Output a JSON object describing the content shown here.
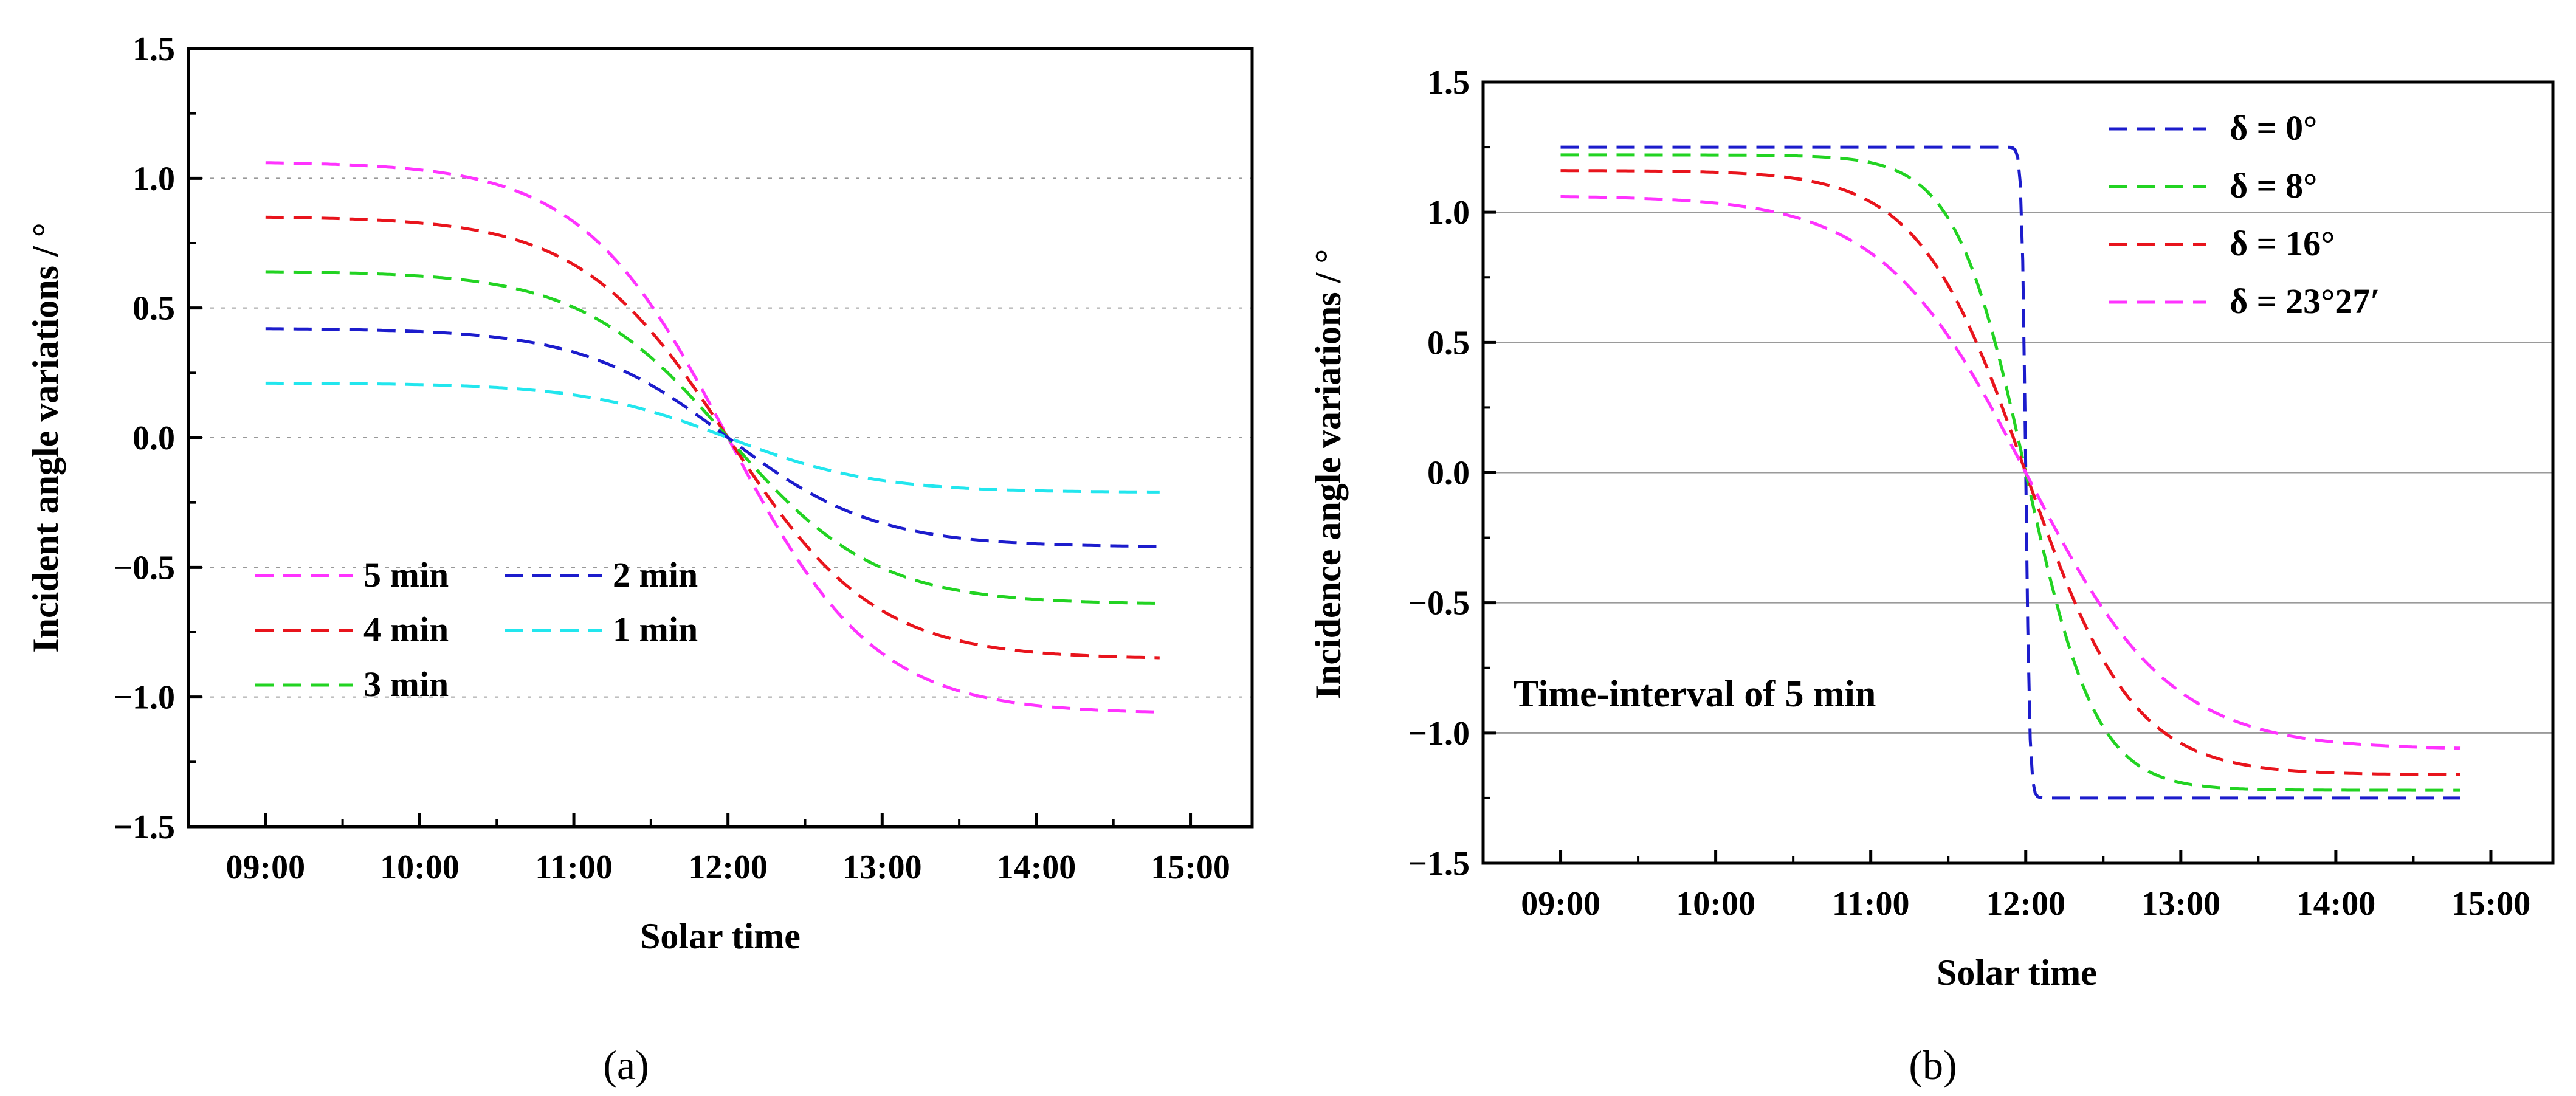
{
  "chart_data": [
    {
      "type": "line",
      "panel_label": "(a)",
      "xlabel": "Solar time",
      "ylabel": "Incident angle variations / °",
      "xlim": [
        8.5,
        15.4
      ],
      "ylim": [
        -1.5,
        1.5
      ],
      "x_ticks": [
        "09:00",
        "10:00",
        "11:00",
        "12:00",
        "13:00",
        "14:00",
        "15:00"
      ],
      "y_ticks": [
        "-1.5",
        "-1.0",
        "-0.5",
        "0.0",
        "0.5",
        "1.0",
        "1.5"
      ],
      "grid": "horizontal dotted",
      "legend_position": "lower-left",
      "series": [
        {
          "name": "5 min",
          "color": "#ff33ff",
          "amplitude": 1.06
        },
        {
          "name": "4 min",
          "color": "#e8141c",
          "amplitude": 0.85
        },
        {
          "name": "3 min",
          "color": "#22d322",
          "amplitude": 0.64
        },
        {
          "name": "2 min",
          "color": "#1c1ccc",
          "amplitude": 0.42
        },
        {
          "name": "1 min",
          "color": "#22e6ee",
          "amplitude": 0.21
        }
      ],
      "x_range_hours": [
        9.0,
        14.8
      ]
    },
    {
      "type": "line",
      "panel_label": "(b)",
      "xlabel": "Solar time",
      "ylabel": "Incidence angle variations / °",
      "xlim": [
        8.5,
        15.4
      ],
      "ylim": [
        -1.5,
        1.5
      ],
      "x_ticks": [
        "09:00",
        "10:00",
        "11:00",
        "12:00",
        "13:00",
        "14:00",
        "15:00"
      ],
      "y_ticks": [
        "-1.5",
        "-1.0",
        "-0.5",
        "0.0",
        "0.5",
        "1.0",
        "1.5"
      ],
      "grid": "horizontal solid",
      "legend_position": "top-right",
      "annotation": "Time-interval of 5 min",
      "series": [
        {
          "name": "δ = 0°",
          "color": "#1c1ccc",
          "amplitude": 1.25
        },
        {
          "name": "δ = 8°",
          "color": "#22d322",
          "amplitude": 1.22
        },
        {
          "name": "δ = 16°",
          "color": "#e8141c",
          "amplitude": 1.16
        },
        {
          "name": "δ = 23°27′",
          "color": "#ff33ff",
          "amplitude": 1.06
        }
      ],
      "x_range_hours": [
        9.0,
        14.8
      ]
    }
  ]
}
